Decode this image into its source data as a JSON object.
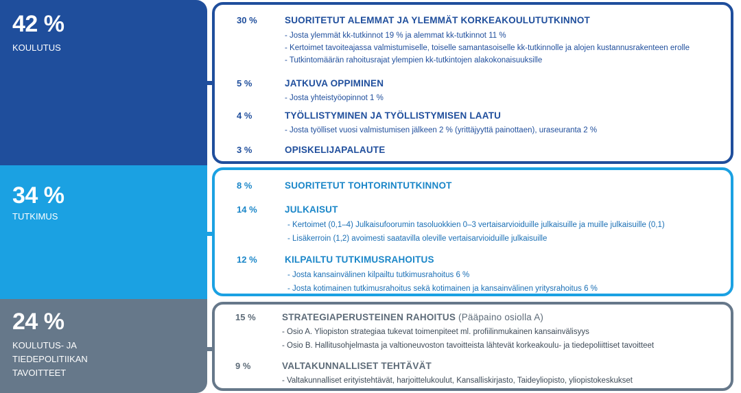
{
  "colors": {
    "education": "#1f4e9c",
    "research": "#1ba1e2",
    "policy": "#66788a"
  },
  "sections": [
    {
      "id": "education",
      "percent": "42 %",
      "label": "KOULUTUS",
      "items": [
        {
          "percent": "30 %",
          "title": "SUORITETUT ALEMMAT JA YLEMMÄT KORKEAKOULUTUTKINNOT",
          "bullets": [
            "- Josta ylemmät kk-tutkinnot 19 % ja alemmat kk-tutkinnot 11 %",
            "- Kertoimet tavoiteajassa valmistumiselle, toiselle samantasoiselle kk-tutkinnolle ja alojen kustannusrakenteen erolle",
            "- Tutkintomäärän rahoitusrajat ylempien kk-tutkintojen alakokonaisuuksille"
          ]
        },
        {
          "percent": "5 %",
          "title": "JATKUVA OPPIMINEN",
          "bullets": [
            "- Josta yhteistyöopinnot 1 %"
          ]
        },
        {
          "percent": "4 %",
          "title": "TYÖLLISTYMINEN JA TYÖLLISTYMISEN LAATU",
          "bullets": [
            "- Josta työlliset vuosi valmistumisen jälkeen 2 % (yrittäjyyttä painottaen), uraseuranta 2 %"
          ]
        },
        {
          "percent": "3 %",
          "title": "OPISKELIJAPALAUTE",
          "bullets": []
        }
      ]
    },
    {
      "id": "research",
      "percent": "34 %",
      "label": "TUTKIMUS",
      "items": [
        {
          "percent": "8 %",
          "title": "SUORITETUT TOHTORINTUTKINNOT",
          "bullets": []
        },
        {
          "percent": "14 %",
          "title": "JULKAISUT",
          "bullets": [
            "- Kertoimet (0,1–4) Julkaisufoorumin tasoluokkien 0–3 vertaisarvioiduille julkaisuille ja muille julkaisuille (0,1)",
            "- Lisäkerroin (1,2) avoimesti saatavilla oleville vertaisarvioiduille julkaisuille"
          ]
        },
        {
          "percent": "12 %",
          "title": "KILPAILTU TUTKIMUSRAHOITUS",
          "bullets": [
            "- Josta kansainvälinen kilpailtu tutkimusrahoitus 6 %",
            "- Josta kotimainen tutkimusrahoitus sekä kotimainen ja kansainvälinen yritysrahoitus 6 %"
          ]
        }
      ]
    },
    {
      "id": "policy",
      "percent": "24 %",
      "label": "KOULUTUS- JA\nTIEDEPOLITIIKAN\nTAVOITTEET",
      "items": [
        {
          "percent": "15 %",
          "title": "STRATEGIAPERUSTEINEN RAHOITUS",
          "title_suffix": " (Pääpaino osiolla A)",
          "bullets": [
            "- Osio A. Yliopiston strategiaa tukevat toimenpiteet ml. profiilinmukainen kansainvälisyys",
            "- Osio B. Hallitusohjelmasta ja valtioneuvoston tavoitteista lähtevät korkeakoulu- ja tiedepoliittiset tavoitteet"
          ]
        },
        {
          "percent": "9 %",
          "title": "VALTAKUNNALLISET TEHTÄVÄT",
          "bullets": [
            "- Valtakunnalliset erityistehtävät, harjoittelukoulut, Kansalliskirjasto, Taideyliopisto, yliopistokeskukset"
          ]
        }
      ]
    }
  ]
}
